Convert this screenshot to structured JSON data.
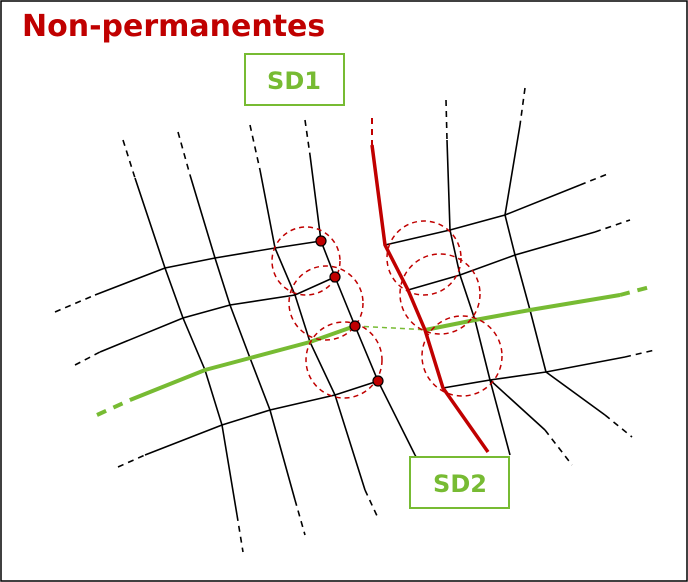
{
  "title": "Non-permanentes",
  "regions": [
    {
      "label": "SD1"
    },
    {
      "label": "SD2"
    }
  ]
}
